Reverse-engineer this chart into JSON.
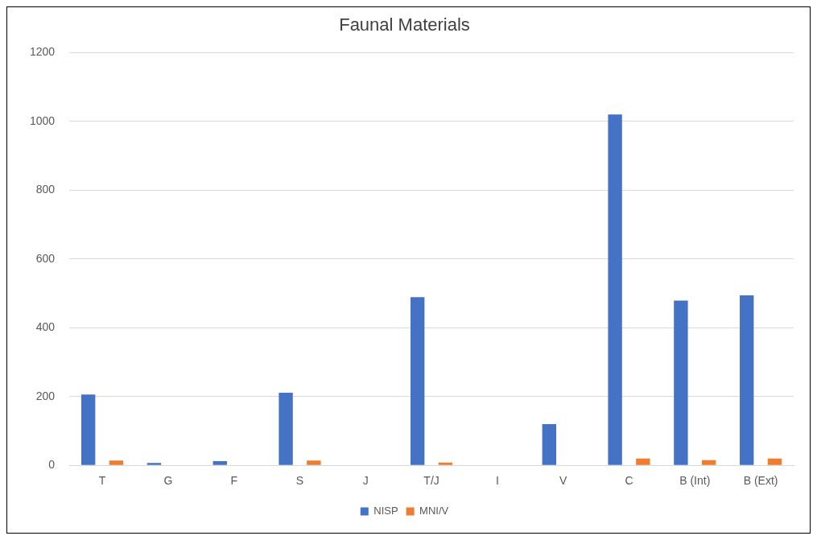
{
  "chart_data": {
    "type": "bar",
    "title": "Faunal Materials",
    "categories": [
      "T",
      "G",
      "F",
      "S",
      "J",
      "T/J",
      "I",
      "V",
      "C",
      "B (Int)",
      "B (Ext)"
    ],
    "series": [
      {
        "name": "NISP",
        "color": "#4472c4",
        "values": [
          206,
          7,
          12,
          211,
          0,
          489,
          0,
          120,
          1020,
          479,
          494
        ]
      },
      {
        "name": "MNI/V",
        "color": "#ed7d31",
        "values": [
          14,
          null,
          null,
          14,
          0,
          8,
          0,
          0,
          20,
          15,
          20
        ]
      }
    ],
    "ylim": [
      0,
      1200
    ],
    "yticks": [
      0,
      200,
      400,
      600,
      800,
      1000,
      1200
    ],
    "grid": "y",
    "legend": "bottom"
  }
}
